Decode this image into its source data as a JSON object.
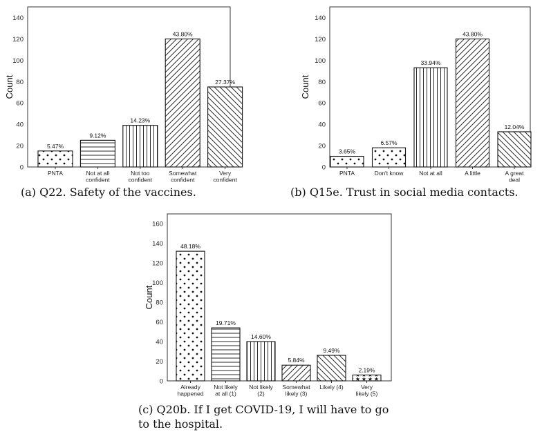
{
  "panels": [
    {
      "caption": "(a) Q22. Safety of the vaccines."
    },
    {
      "caption": "(b) Q15e. Trust in social media contacts."
    },
    {
      "caption": "(c) Q20b. If I get COVID-19, I will have to go to the hospital."
    }
  ],
  "chart_data": [
    {
      "type": "bar",
      "ylabel": "Count",
      "ylim": [
        0,
        150
      ],
      "yticks": [
        0,
        20,
        40,
        60,
        80,
        100,
        120,
        140
      ],
      "categories": [
        [
          "PNTA"
        ],
        [
          "Not at all",
          "confident"
        ],
        [
          "Not too",
          "confident"
        ],
        [
          "Somewhat",
          "confident"
        ],
        [
          "Very",
          "confident"
        ]
      ],
      "values": [
        15,
        25,
        39,
        120,
        75
      ],
      "labels": [
        "5.47%",
        "9.12%",
        "14.23%",
        "43.80%",
        "27.37%"
      ],
      "patterns": [
        "dots",
        "horizontal",
        "vertical",
        "diag-up",
        "diag-down"
      ],
      "grid": false
    },
    {
      "type": "bar",
      "ylabel": "Count",
      "ylim": [
        0,
        150
      ],
      "yticks": [
        0,
        20,
        40,
        60,
        80,
        100,
        120,
        140
      ],
      "categories": [
        [
          "PNTA"
        ],
        [
          "Don't know"
        ],
        [
          "Not at all"
        ],
        [
          "A little"
        ],
        [
          "A great",
          "deal"
        ]
      ],
      "values": [
        10,
        18,
        93,
        120,
        33
      ],
      "labels": [
        "3.65%",
        "6.57%",
        "33.94%",
        "43.80%",
        "12.04%"
      ],
      "patterns": [
        "dots",
        "dots",
        "vertical",
        "diag-up",
        "diag-down"
      ],
      "grid": false
    },
    {
      "type": "bar",
      "ylabel": "Count",
      "ylim": [
        0,
        170
      ],
      "yticks": [
        0,
        20,
        40,
        60,
        80,
        100,
        120,
        140,
        160
      ],
      "categories": [
        [
          "Already",
          "happened"
        ],
        [
          "Not likely",
          "at all (1)"
        ],
        [
          "Not likely",
          "(2)"
        ],
        [
          "Somewhat",
          "likely (3)"
        ],
        [
          "Likely (4)"
        ],
        [
          "Very",
          "likely (5)"
        ]
      ],
      "values": [
        132,
        54,
        40,
        16,
        26,
        6
      ],
      "labels": [
        "48.18%",
        "19.71%",
        "14.60%",
        "5.84%",
        "9.49%",
        "2.19%"
      ],
      "patterns": [
        "dots",
        "horizontal",
        "vertical",
        "diag-up",
        "diag-down",
        "stars"
      ],
      "grid": false
    }
  ]
}
